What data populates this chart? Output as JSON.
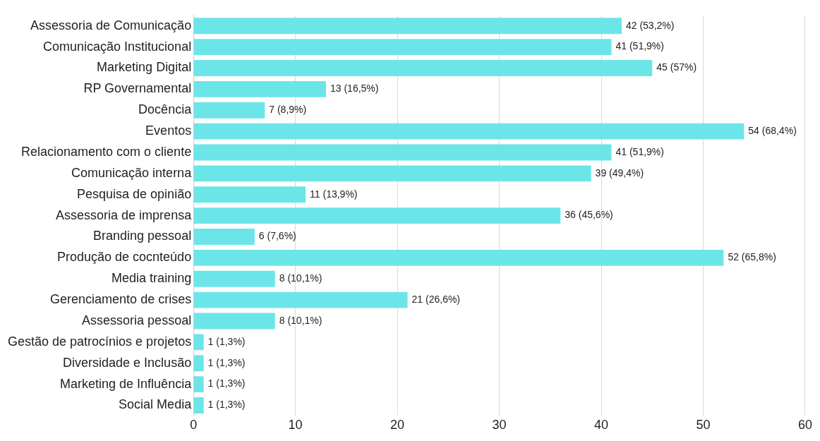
{
  "chart_data": {
    "type": "bar",
    "orientation": "horizontal",
    "categories": [
      "Assessoria de Comunicação",
      "Comunicação Institucional",
      "Marketing Digital",
      "RP Governamental",
      "Docência",
      "Eventos",
      "Relacionamento com o cliente",
      "Comunicação interna",
      "Pesquisa de opinião",
      "Assessoria de imprensa",
      "Branding pessoal",
      "Produção de cocnteúdo",
      "Media training",
      "Gerenciamento de crises",
      "Assessoria pessoal",
      "Gestão de patrocínios e projetos",
      "Diversidade e Inclusão",
      "Marketing de Influência",
      "Social Media"
    ],
    "values": [
      42,
      41,
      45,
      13,
      7,
      54,
      41,
      39,
      11,
      36,
      6,
      52,
      8,
      21,
      8,
      1,
      1,
      1,
      1
    ],
    "value_labels": [
      "42 (53,2%)",
      "41 (51,9%)",
      "45 (57%)",
      "13 (16,5%)",
      "7 (8,9%)",
      "54 (68,4%)",
      "41 (51,9%)",
      "39 (49,4%)",
      "11 (13,9%)",
      "36 (45,6%)",
      "6 (7,6%)",
      "52 (65,8%)",
      "8 (10,1%)",
      "21 (26,6%)",
      "8 (10,1%)",
      "1 (1,3%)",
      "1 (1,3%)",
      "1 (1,3%)",
      "1 (1,3%)"
    ],
    "color": "#6ce5e8",
    "xlim": [
      0,
      60
    ],
    "xticks": [
      0,
      10,
      20,
      30,
      40,
      50,
      60
    ],
    "grid": "x"
  }
}
